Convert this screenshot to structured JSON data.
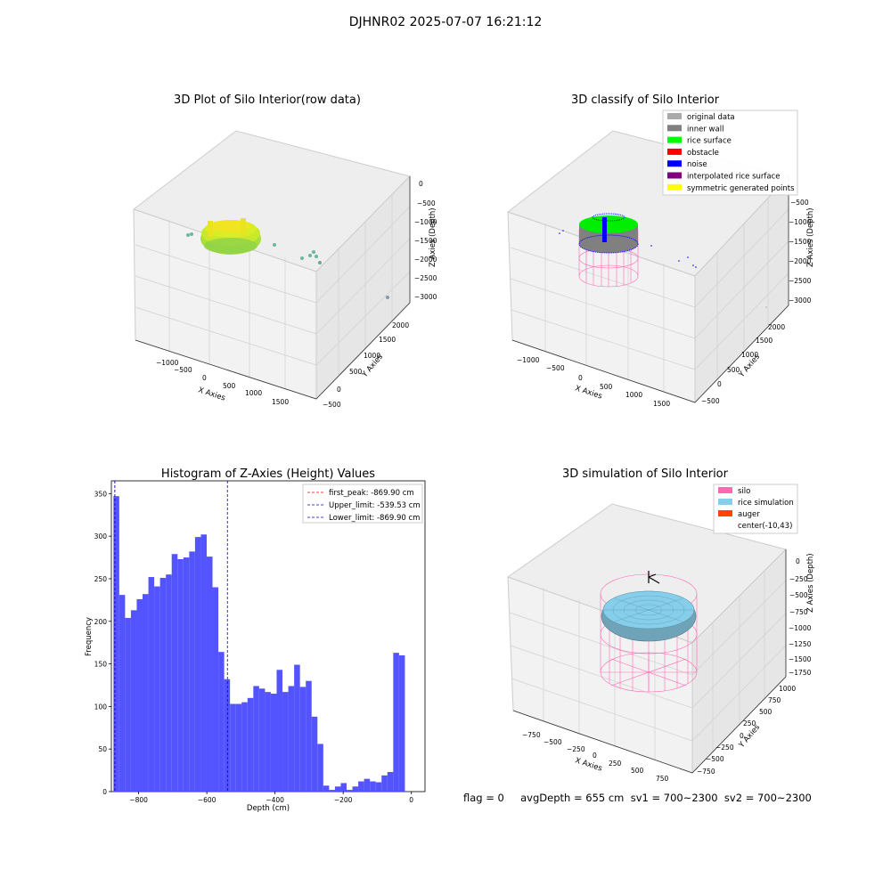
{
  "figure": {
    "suptitle": "DJHNR02 2025-07-07 16:21:12",
    "footer": "flag = 0     avgDepth = 655 cm  sv1 = 700~2300  sv2 = 700~2300"
  },
  "colors": {
    "bar": "#4b4bff",
    "peak_line": "#ff0000",
    "limit_line": "#0000cc",
    "silo": "#ff69b4",
    "rice_sim": "#87ceeb",
    "auger": "#ff4500",
    "original": "#aaaaaa",
    "inner_wall": "#808080",
    "rice_surface": "#00ff00",
    "obstacle": "#ff0000",
    "noise": "#0000ff",
    "interp": "#800080",
    "sym": "#ffff00"
  },
  "chart_data": [
    {
      "type": "scatter",
      "title": "3D Plot of Silo Interior(row data)",
      "xlabel": "X Axies",
      "ylabel": "Y Axies",
      "zlabel": "Z Axies (Depth)",
      "x_ticks": [
        "−1000",
        "−500",
        "0",
        "500",
        "1000",
        "1500"
      ],
      "y_ticks": [
        "−500",
        "0",
        "500",
        "1000",
        "1500",
        "2000"
      ],
      "z_ticks": [
        "0",
        "−500",
        "−1000",
        "−1500",
        "−2000",
        "−2500",
        "−3000"
      ]
    },
    {
      "type": "scatter",
      "title": "3D classify of Silo Interior",
      "xlabel": "X Axies",
      "ylabel": "Y Axies",
      "zlabel": "Z Axies (Depth)",
      "x_ticks": [
        "−1000",
        "−500",
        "0",
        "500",
        "1000",
        "1500"
      ],
      "y_ticks": [
        "−500",
        "0",
        "500",
        "1000",
        "1500",
        "2000"
      ],
      "z_ticks": [
        "−500",
        "−1000",
        "−1500",
        "−2000",
        "−2500",
        "−3000"
      ],
      "legend": {
        "placement": "top-right",
        "entries": [
          {
            "label": "original data",
            "color": "#aaaaaa"
          },
          {
            "label": "inner wall",
            "color": "#808080"
          },
          {
            "label": "rice surface",
            "color": "#00ff00"
          },
          {
            "label": "obstacle",
            "color": "#ff0000"
          },
          {
            "label": "noise",
            "color": "#0000ff"
          },
          {
            "label": "interpolated rice surface",
            "color": "#800080"
          },
          {
            "label": "symmetric generated points",
            "color": "#ffff00"
          }
        ]
      }
    },
    {
      "type": "bar",
      "title": "Histogram of Z-Axies (Height) Values",
      "xlabel": "Depth (cm)",
      "ylabel": "Frequency",
      "xlim": [
        -880,
        40
      ],
      "ylim": [
        0,
        365
      ],
      "bin_start": -874,
      "bin_width": 17.1,
      "values": [
        347,
        231,
        204,
        213,
        226,
        232,
        252,
        241,
        251,
        255,
        279,
        273,
        275,
        282,
        299,
        302,
        276,
        240,
        164,
        132,
        103,
        103,
        105,
        110,
        124,
        121,
        117,
        115,
        143,
        117,
        124,
        149,
        123,
        130,
        88,
        56,
        7,
        2,
        6,
        10,
        2,
        6,
        12,
        15,
        12,
        11,
        19,
        23,
        163,
        160
      ],
      "x_ticks": [
        -800,
        -600,
        -400,
        -200,
        0
      ],
      "y_ticks": [
        0,
        50,
        100,
        150,
        200,
        250,
        300,
        350
      ],
      "vlines": [
        {
          "x": -869.9,
          "label": "first_peak: -869.90 cm",
          "color": "#ff0000"
        },
        {
          "x": -539.53,
          "label": "Upper_limit: -539.53 cm",
          "color": "#0000cc"
        },
        {
          "x": -869.9,
          "label": "Lower_limit: -869.90 cm",
          "color": "#0000cc"
        }
      ],
      "legend": {
        "placement": "top-right"
      }
    },
    {
      "type": "scatter",
      "title": "3D simulation of Silo Interior",
      "xlabel": "X Axies",
      "ylabel": "Y Axies",
      "zlabel": "Z Axies (Depth)",
      "x_ticks": [
        "−750",
        "−500",
        "−250",
        "0",
        "250",
        "500",
        "750"
      ],
      "y_ticks": [
        "−750",
        "−500",
        "−250",
        "0",
        "250",
        "500",
        "750",
        "1000"
      ],
      "z_ticks": [
        "0",
        "−250",
        "−500",
        "−750",
        "−1000",
        "−1250",
        "−1500",
        "−1750"
      ],
      "legend": {
        "placement": "top-right",
        "entries": [
          {
            "label": "silo",
            "color": "#ff69b4"
          },
          {
            "label": "rice simulation",
            "color": "#87ceeb"
          },
          {
            "label": "auger",
            "color": "#ff4500"
          },
          {
            "label": "center(-10,43)",
            "color": "none"
          }
        ]
      }
    }
  ]
}
